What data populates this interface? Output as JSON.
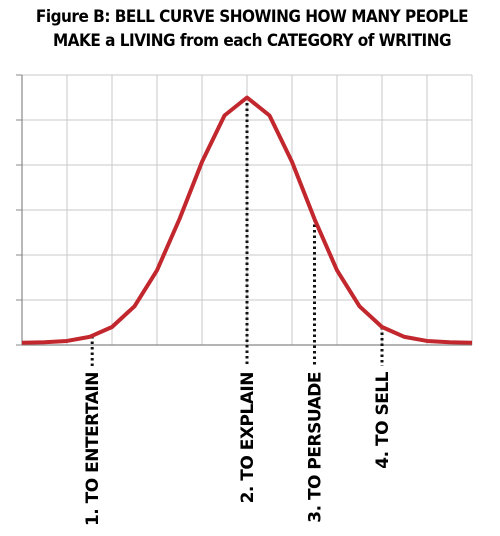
{
  "chart_data": {
    "type": "line",
    "title_lines": [
      "Figure B: BELL CURVE SHOWING HOW MANY PEOPLE",
      "MAKE a LIVING from each CATEGORY of WRITING"
    ],
    "x": [
      0,
      0.5,
      1,
      1.5,
      2,
      2.5,
      3,
      3.5,
      4,
      4.5,
      5,
      5.5,
      6,
      6.5,
      7,
      7.5,
      8,
      8.5,
      9,
      9.5,
      10
    ],
    "series": [
      {
        "color": "#c1272d",
        "values": [
          0.05,
          0.06,
          0.09,
          0.18,
          0.4,
          0.86,
          1.66,
          2.8,
          4.07,
          5.1,
          5.5,
          5.1,
          4.07,
          2.8,
          1.66,
          0.86,
          0.4,
          0.18,
          0.09,
          0.06,
          0.05
        ]
      }
    ],
    "xlim": [
      0,
      10
    ],
    "ylim": [
      0,
      6
    ],
    "xticks": [
      0,
      1,
      2,
      3,
      4,
      5,
      6,
      7,
      8,
      9,
      10
    ],
    "yticks": [
      0,
      1,
      2,
      3,
      4,
      5,
      6
    ],
    "grid": true,
    "annotations": [
      {
        "text": "1. TO ENTERTAIN",
        "x": 1.56,
        "y": 0.2
      },
      {
        "text": "2. TO EXPLAIN",
        "x": 5.0,
        "y": 5.5
      },
      {
        "text": "3. TO PERSUADE",
        "x": 6.5,
        "y": 2.8
      },
      {
        "text": "4. TO SELL",
        "x": 8.0,
        "y": 0.4
      }
    ]
  }
}
